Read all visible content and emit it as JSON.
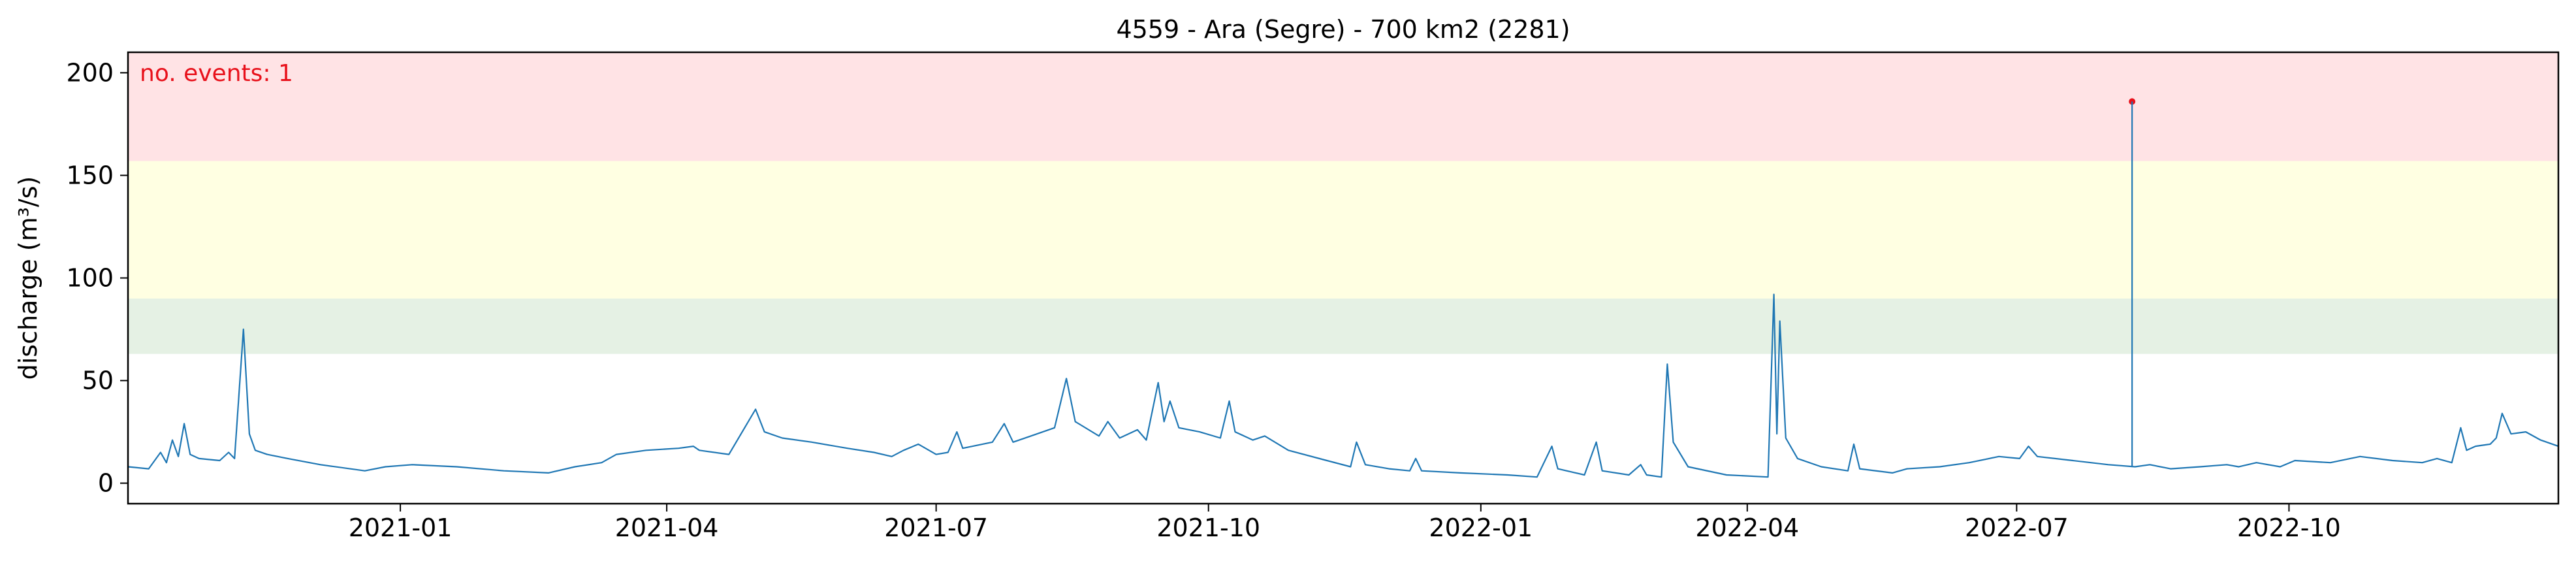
{
  "chart_data": {
    "type": "line",
    "title": "4559 - Ara (Segre) - 700 km2 (2281)",
    "xlabel": "",
    "ylabel": "discharge (m³/s)",
    "xlim": [
      "2020-10-01",
      "2022-12-31"
    ],
    "ylim": [
      -10,
      210
    ],
    "yticks": [
      0,
      50,
      100,
      150,
      200
    ],
    "xticks": [
      {
        "date": "2021-01-01",
        "label": "2021-01"
      },
      {
        "date": "2021-04-01",
        "label": "2021-04"
      },
      {
        "date": "2021-07-01",
        "label": "2021-07"
      },
      {
        "date": "2021-10-01",
        "label": "2021-10"
      },
      {
        "date": "2022-01-01",
        "label": "2022-01"
      },
      {
        "date": "2022-04-01",
        "label": "2022-04"
      },
      {
        "date": "2022-07-01",
        "label": "2022-07"
      },
      {
        "date": "2022-10-01",
        "label": "2022-10"
      }
    ],
    "threshold_bands": [
      {
        "from": 63,
        "to": 90,
        "color": "#e5f1e4"
      },
      {
        "from": 90,
        "to": 157,
        "color": "#ffffe2"
      },
      {
        "from": 157,
        "to": 210,
        "color": "#ffe3e5"
      }
    ],
    "annotation": {
      "text": "no. events: 1",
      "color": "#e8111b"
    },
    "event_marker": {
      "x": "2022-08-09",
      "y": 186,
      "color": "#e8111b"
    },
    "series": [
      {
        "color": "#1f77b4",
        "points": [
          [
            "2020-10-01",
            8
          ],
          [
            "2020-10-08",
            7
          ],
          [
            "2020-10-12",
            15
          ],
          [
            "2020-10-14",
            10
          ],
          [
            "2020-10-16",
            21
          ],
          [
            "2020-10-18",
            13
          ],
          [
            "2020-10-20",
            29
          ],
          [
            "2020-10-22",
            14
          ],
          [
            "2020-10-25",
            12
          ],
          [
            "2020-11-01",
            11
          ],
          [
            "2020-11-04",
            15
          ],
          [
            "2020-11-06",
            12
          ],
          [
            "2020-11-09",
            75
          ],
          [
            "2020-11-11",
            24
          ],
          [
            "2020-11-13",
            16
          ],
          [
            "2020-11-17",
            14
          ],
          [
            "2020-11-24",
            12
          ],
          [
            "2020-12-05",
            9
          ],
          [
            "2020-12-20",
            6
          ],
          [
            "2020-12-27",
            8
          ],
          [
            "2021-01-05",
            9
          ],
          [
            "2021-01-20",
            8
          ],
          [
            "2021-02-05",
            6
          ],
          [
            "2021-02-20",
            5
          ],
          [
            "2021-03-01",
            8
          ],
          [
            "2021-03-10",
            10
          ],
          [
            "2021-03-15",
            14
          ],
          [
            "2021-03-25",
            16
          ],
          [
            "2021-04-05",
            17
          ],
          [
            "2021-04-10",
            18
          ],
          [
            "2021-04-12",
            16
          ],
          [
            "2021-04-22",
            14
          ],
          [
            "2021-05-01",
            36
          ],
          [
            "2021-05-04",
            25
          ],
          [
            "2021-05-10",
            22
          ],
          [
            "2021-05-20",
            20
          ],
          [
            "2021-06-01",
            17
          ],
          [
            "2021-06-10",
            15
          ],
          [
            "2021-06-16",
            13
          ],
          [
            "2021-06-20",
            16
          ],
          [
            "2021-06-25",
            19
          ],
          [
            "2021-07-01",
            14
          ],
          [
            "2021-07-05",
            15
          ],
          [
            "2021-07-08",
            25
          ],
          [
            "2021-07-10",
            17
          ],
          [
            "2021-07-20",
            20
          ],
          [
            "2021-07-24",
            29
          ],
          [
            "2021-07-27",
            20
          ],
          [
            "2021-08-02",
            23
          ],
          [
            "2021-08-10",
            27
          ],
          [
            "2021-08-14",
            51
          ],
          [
            "2021-08-17",
            30
          ],
          [
            "2021-08-25",
            23
          ],
          [
            "2021-08-28",
            30
          ],
          [
            "2021-09-01",
            22
          ],
          [
            "2021-09-07",
            26
          ],
          [
            "2021-09-10",
            21
          ],
          [
            "2021-09-14",
            49
          ],
          [
            "2021-09-16",
            30
          ],
          [
            "2021-09-18",
            40
          ],
          [
            "2021-09-21",
            27
          ],
          [
            "2021-09-28",
            25
          ],
          [
            "2021-10-05",
            22
          ],
          [
            "2021-10-08",
            40
          ],
          [
            "2021-10-10",
            25
          ],
          [
            "2021-10-16",
            21
          ],
          [
            "2021-10-20",
            23
          ],
          [
            "2021-10-28",
            16
          ],
          [
            "2021-11-10",
            11
          ],
          [
            "2021-11-18",
            8
          ],
          [
            "2021-11-20",
            20
          ],
          [
            "2021-11-23",
            9
          ],
          [
            "2021-12-01",
            7
          ],
          [
            "2021-12-08",
            6
          ],
          [
            "2021-12-10",
            12
          ],
          [
            "2021-12-12",
            6
          ],
          [
            "2021-12-25",
            5
          ],
          [
            "2022-01-10",
            4
          ],
          [
            "2022-01-20",
            3
          ],
          [
            "2022-01-25",
            18
          ],
          [
            "2022-01-27",
            7
          ],
          [
            "2022-02-05",
            4
          ],
          [
            "2022-02-09",
            20
          ],
          [
            "2022-02-11",
            6
          ],
          [
            "2022-02-20",
            4
          ],
          [
            "2022-02-24",
            9
          ],
          [
            "2022-02-26",
            4
          ],
          [
            "2022-03-03",
            3
          ],
          [
            "2022-03-05",
            58
          ],
          [
            "2022-03-07",
            20
          ],
          [
            "2022-03-12",
            8
          ],
          [
            "2022-03-25",
            4
          ],
          [
            "2022-04-08",
            3
          ],
          [
            "2022-04-10",
            92
          ],
          [
            "2022-04-11",
            24
          ],
          [
            "2022-04-12",
            79
          ],
          [
            "2022-04-14",
            22
          ],
          [
            "2022-04-18",
            12
          ],
          [
            "2022-04-26",
            8
          ],
          [
            "2022-05-05",
            6
          ],
          [
            "2022-05-07",
            19
          ],
          [
            "2022-05-09",
            7
          ],
          [
            "2022-05-20",
            5
          ],
          [
            "2022-05-25",
            7
          ],
          [
            "2022-06-05",
            8
          ],
          [
            "2022-06-15",
            10
          ],
          [
            "2022-06-25",
            13
          ],
          [
            "2022-07-02",
            12
          ],
          [
            "2022-07-05",
            18
          ],
          [
            "2022-07-08",
            13
          ],
          [
            "2022-07-20",
            11
          ],
          [
            "2022-08-01",
            9
          ],
          [
            "2022-08-10",
            8
          ],
          [
            "2022-08-15",
            9
          ],
          [
            "2022-08-22",
            7
          ],
          [
            "2022-09-01",
            8
          ],
          [
            "2022-09-10",
            9
          ],
          [
            "2022-09-14",
            8
          ],
          [
            "2022-09-20",
            10
          ],
          [
            "2022-09-28",
            8
          ],
          [
            "2022-10-03",
            11
          ],
          [
            "2022-10-15",
            10
          ],
          [
            "2022-10-25",
            13
          ],
          [
            "2022-11-05",
            11
          ],
          [
            "2022-11-15",
            10
          ],
          [
            "2022-11-20",
            12
          ],
          [
            "2022-11-25",
            10
          ],
          [
            "2022-11-28",
            27
          ],
          [
            "2022-11-30",
            16
          ],
          [
            "2022-12-03",
            18
          ],
          [
            "2022-12-08",
            19
          ],
          [
            "2022-12-10",
            22
          ],
          [
            "2022-12-12",
            34
          ],
          [
            "2022-12-15",
            24
          ],
          [
            "2022-12-20",
            25
          ],
          [
            "2022-12-25",
            21
          ],
          [
            "2022-12-31",
            18
          ]
        ]
      }
    ]
  }
}
